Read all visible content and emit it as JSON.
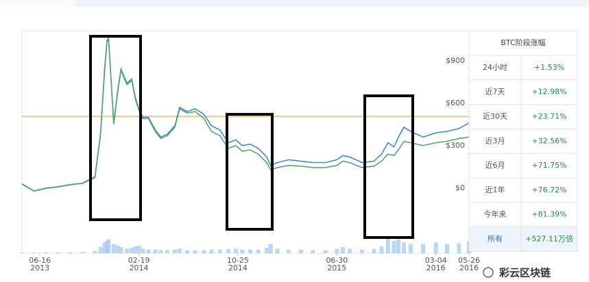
{
  "chart_data": {
    "type": "line",
    "x": [
      "2013-05-02",
      "2013-06-01",
      "2013-07-01",
      "2013-08-01",
      "2013-09-01",
      "2013-10-01",
      "2013-11-01",
      "2013-11-15",
      "2013-11-25",
      "2013-12-01",
      "2013-12-05",
      "2013-12-18",
      "2013-12-28",
      "2014-01-05",
      "2014-01-20",
      "2014-02-01",
      "2014-02-10",
      "2014-02-19",
      "2014-03-01",
      "2014-03-15",
      "2014-04-01",
      "2014-04-15",
      "2014-05-01",
      "2014-05-20",
      "2014-06-01",
      "2014-06-20",
      "2014-07-10",
      "2014-08-01",
      "2014-08-20",
      "2014-09-10",
      "2014-10-01",
      "2014-10-20",
      "2014-11-05",
      "2014-11-25",
      "2014-12-15",
      "2015-01-05",
      "2015-01-15",
      "2015-02-01",
      "2015-03-01",
      "2015-04-01",
      "2015-05-01",
      "2015-06-01",
      "2015-06-30",
      "2015-07-15",
      "2015-08-01",
      "2015-09-01",
      "2015-10-01",
      "2015-10-20",
      "2015-11-05",
      "2015-11-20",
      "2015-12-01",
      "2015-12-15",
      "2016-01-01",
      "2016-02-01",
      "2016-03-04",
      "2016-04-01",
      "2016-05-01",
      "2016-05-26"
    ],
    "series": [
      {
        "color": "#3a8bd0",
        "values": [
          90,
          40,
          60,
          70,
          85,
          95,
          140,
          450,
          900,
          1100,
          1120,
          520,
          750,
          900,
          800,
          830,
          700,
          620,
          560,
          560,
          470,
          420,
          440,
          500,
          630,
          600,
          620,
          580,
          500,
          470,
          380,
          400,
          360,
          370,
          340,
          280,
          220,
          240,
          260,
          250,
          240,
          240,
          260,
          290,
          280,
          240,
          250,
          300,
          380,
          350,
          420,
          490,
          460,
          420,
          450,
          460,
          480,
          520
        ]
      },
      {
        "color": "#5aa36e",
        "values": [
          88,
          38,
          58,
          68,
          83,
          93,
          135,
          440,
          880,
          1090,
          1110,
          510,
          740,
          890,
          790,
          820,
          690,
          610,
          550,
          550,
          460,
          410,
          430,
          490,
          620,
          590,
          600,
          550,
          460,
          430,
          340,
          360,
          320,
          330,
          300,
          240,
          190,
          205,
          220,
          215,
          205,
          205,
          220,
          250,
          240,
          205,
          215,
          250,
          300,
          290,
          330,
          390,
          380,
          360,
          380,
          390,
          410,
          420
        ]
      }
    ],
    "volume": [
      2,
      2,
      3,
      3,
      3,
      4,
      8,
      20,
      35,
      40,
      45,
      30,
      25,
      20,
      15,
      18,
      22,
      25,
      15,
      12,
      12,
      10,
      10,
      12,
      15,
      10,
      10,
      10,
      12,
      12,
      14,
      15,
      12,
      12,
      12,
      18,
      30,
      15,
      12,
      12,
      10,
      10,
      14,
      20,
      15,
      12,
      14,
      22,
      55,
      40,
      45,
      35,
      30,
      30,
      35,
      30,
      32,
      40
    ],
    "vlim": [
      0,
      100
    ],
    "volume_color": "#a9cdf0",
    "reference_line": 566,
    "reference_color": "#f0b86a",
    "xlim": [
      "2013-05-02",
      "2016-05-26"
    ],
    "xticks": [
      {
        "value": "2013-06-16",
        "label": "06-16",
        "year": "2013"
      },
      {
        "value": "2014-02-19",
        "label": "02-19",
        "year": "2014"
      },
      {
        "value": "2014-10-25",
        "label": "10-25",
        "year": "2014"
      },
      {
        "value": "2015-06-30",
        "label": "06-30",
        "year": "2015"
      },
      {
        "value": "2016-03-04",
        "label": "03-04",
        "year": "2016"
      },
      {
        "value": "2016-05-26",
        "label": "05-26",
        "year": "2016"
      }
    ],
    "ylim": [
      -400,
      1170
    ],
    "yticks": [
      {
        "value": 0,
        "label": "$0"
      },
      {
        "value": 300,
        "label": "$300"
      },
      {
        "value": 600,
        "label": "$600"
      },
      {
        "value": 900,
        "label": "$900"
      }
    ]
  },
  "table": {
    "title": "BTC阶段涨幅",
    "rows": [
      [
        "24小时",
        "+1.53%"
      ],
      [
        "近7天",
        "+12.98%"
      ],
      [
        "近30天",
        "+23.71%"
      ],
      [
        "近3月",
        "+32.56%"
      ],
      [
        "近6月",
        "+71.75%"
      ],
      [
        "近1年",
        "+76.72%"
      ],
      [
        "今年来",
        "+81.39%"
      ],
      [
        "所有",
        "+527.11万倍"
      ]
    ]
  },
  "watermark": "彩云区块链"
}
